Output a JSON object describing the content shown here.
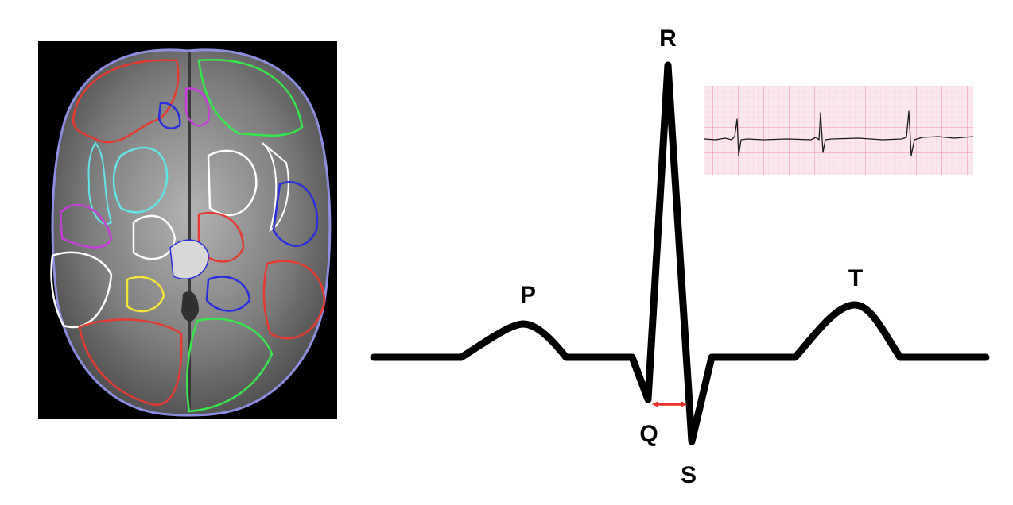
{
  "figure": {
    "background_color": "#ffffff"
  },
  "brain_panel": {
    "icon": "brain-mri-segmentation",
    "background_color": "#000000",
    "segmentation_colors": [
      "#e53a2f",
      "#37e84a",
      "#c43ed8",
      "#2a2ce0",
      "#62e5e8",
      "#ffffff",
      "#f5e53a",
      "#8e8ee0"
    ]
  },
  "ecg_diagram": {
    "wave_labels": {
      "p": "P",
      "q": "Q",
      "r": "R",
      "s": "S",
      "t": "T"
    },
    "trace_color": "#000000",
    "interval_marker": {
      "icon": "double-arrow",
      "from": "Q",
      "to": "S",
      "color": "#e8322a"
    }
  },
  "ecg_strip_inset": {
    "icon": "ecg-paper-strip",
    "grid_color": "#f0a8b8",
    "paper_color": "#fbe8ee",
    "trace_color": "#1a1a1a"
  }
}
